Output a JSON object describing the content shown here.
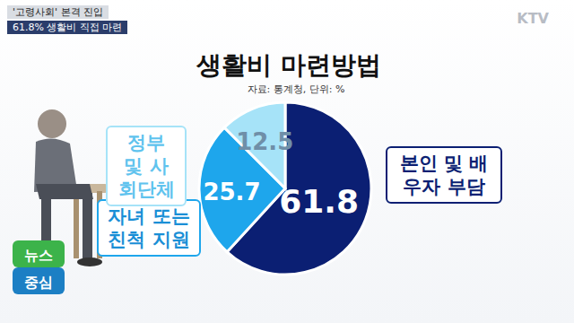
{
  "header": {
    "tags": [
      "'고령사회' 본격 진입",
      "61.8% 생활비 직접 마련"
    ],
    "logo": "KTV",
    "badge": [
      "뉴스",
      "중심"
    ]
  },
  "chart_data": {
    "type": "pie",
    "title": "생활비 마련방법",
    "subtitle": "자료: 통계청, 단위: %",
    "categories": [
      "본인 및 배우자 부담",
      "자녀 또는 친척 지원",
      "정부 및 사회단체"
    ],
    "values": [
      61.8,
      25.7,
      12.5
    ],
    "colors": [
      "#0b1f73",
      "#1ea6ec",
      "#a6e3f8"
    ],
    "data_labels": true
  }
}
